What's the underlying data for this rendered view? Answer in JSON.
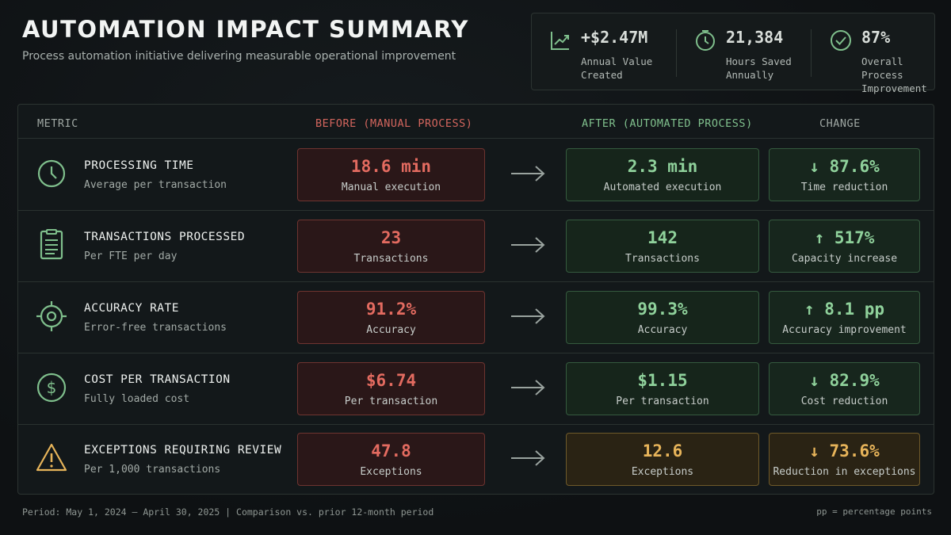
{
  "header": {
    "title": "AUTOMATION IMPACT SUMMARY",
    "subtitle": "Process automation initiative delivering measurable operational improvement"
  },
  "kpis": [
    {
      "icon": "trend-up-icon",
      "value": "+$2.47M",
      "label": "Annual Value Created"
    },
    {
      "icon": "stopwatch-icon",
      "value": "21,384",
      "label": "Hours Saved Annually"
    },
    {
      "icon": "check-circle-icon",
      "value": "87%",
      "label": "Overall Process Improvement"
    }
  ],
  "table": {
    "headers": {
      "metric": "METRIC",
      "before": "BEFORE (MANUAL PROCESS)",
      "after": "AFTER (AUTOMATED PROCESS)",
      "change": "CHANGE"
    },
    "rows": [
      {
        "icon": "clock-icon",
        "title": "PROCESSING TIME",
        "subtitle": "Average per transaction",
        "before": {
          "value": "18.6 min",
          "label": "Manual execution"
        },
        "after": {
          "value": "2.3 min",
          "label": "Automated execution"
        },
        "change": {
          "value": "↓ 87.6%",
          "label": "Time reduction"
        }
      },
      {
        "icon": "document-icon",
        "title": "TRANSACTIONS PROCESSED",
        "subtitle": "Per FTE per day",
        "before": {
          "value": "23",
          "label": "Transactions"
        },
        "after": {
          "value": "142",
          "label": "Transactions"
        },
        "change": {
          "value": "↑ 517%",
          "label": "Capacity increase"
        }
      },
      {
        "icon": "target-icon",
        "title": "ACCURACY RATE",
        "subtitle": "Error-free transactions",
        "before": {
          "value": "91.2%",
          "label": "Accuracy"
        },
        "after": {
          "value": "99.3%",
          "label": "Accuracy"
        },
        "change": {
          "value": "↑ 8.1 pp",
          "label": "Accuracy improvement"
        }
      },
      {
        "icon": "dollar-circle-icon",
        "title": "COST PER TRANSACTION",
        "subtitle": "Fully loaded cost",
        "before": {
          "value": "$6.74",
          "label": "Per transaction"
        },
        "after": {
          "value": "$1.15",
          "label": "Per transaction"
        },
        "change": {
          "value": "↓ 82.9%",
          "label": "Cost reduction"
        }
      },
      {
        "icon": "warning-icon",
        "title": "EXCEPTIONS REQUIRING REVIEW",
        "subtitle": "Per 1,000 transactions",
        "before": {
          "value": "47.8",
          "label": "Exceptions"
        },
        "after": {
          "value": "12.6",
          "label": "Exceptions"
        },
        "change": {
          "value": "↓ 73.6%",
          "label": "Reduction in exceptions"
        }
      }
    ]
  },
  "footer": {
    "period": "Period: May 1, 2024 – April 30, 2025  |  Comparison vs. prior 12-month period",
    "note": "pp = percentage points"
  },
  "colors": {
    "before": "#e36b60",
    "after": "#8fd19b",
    "warning": "#e7b45a",
    "background": "#0f1214"
  }
}
